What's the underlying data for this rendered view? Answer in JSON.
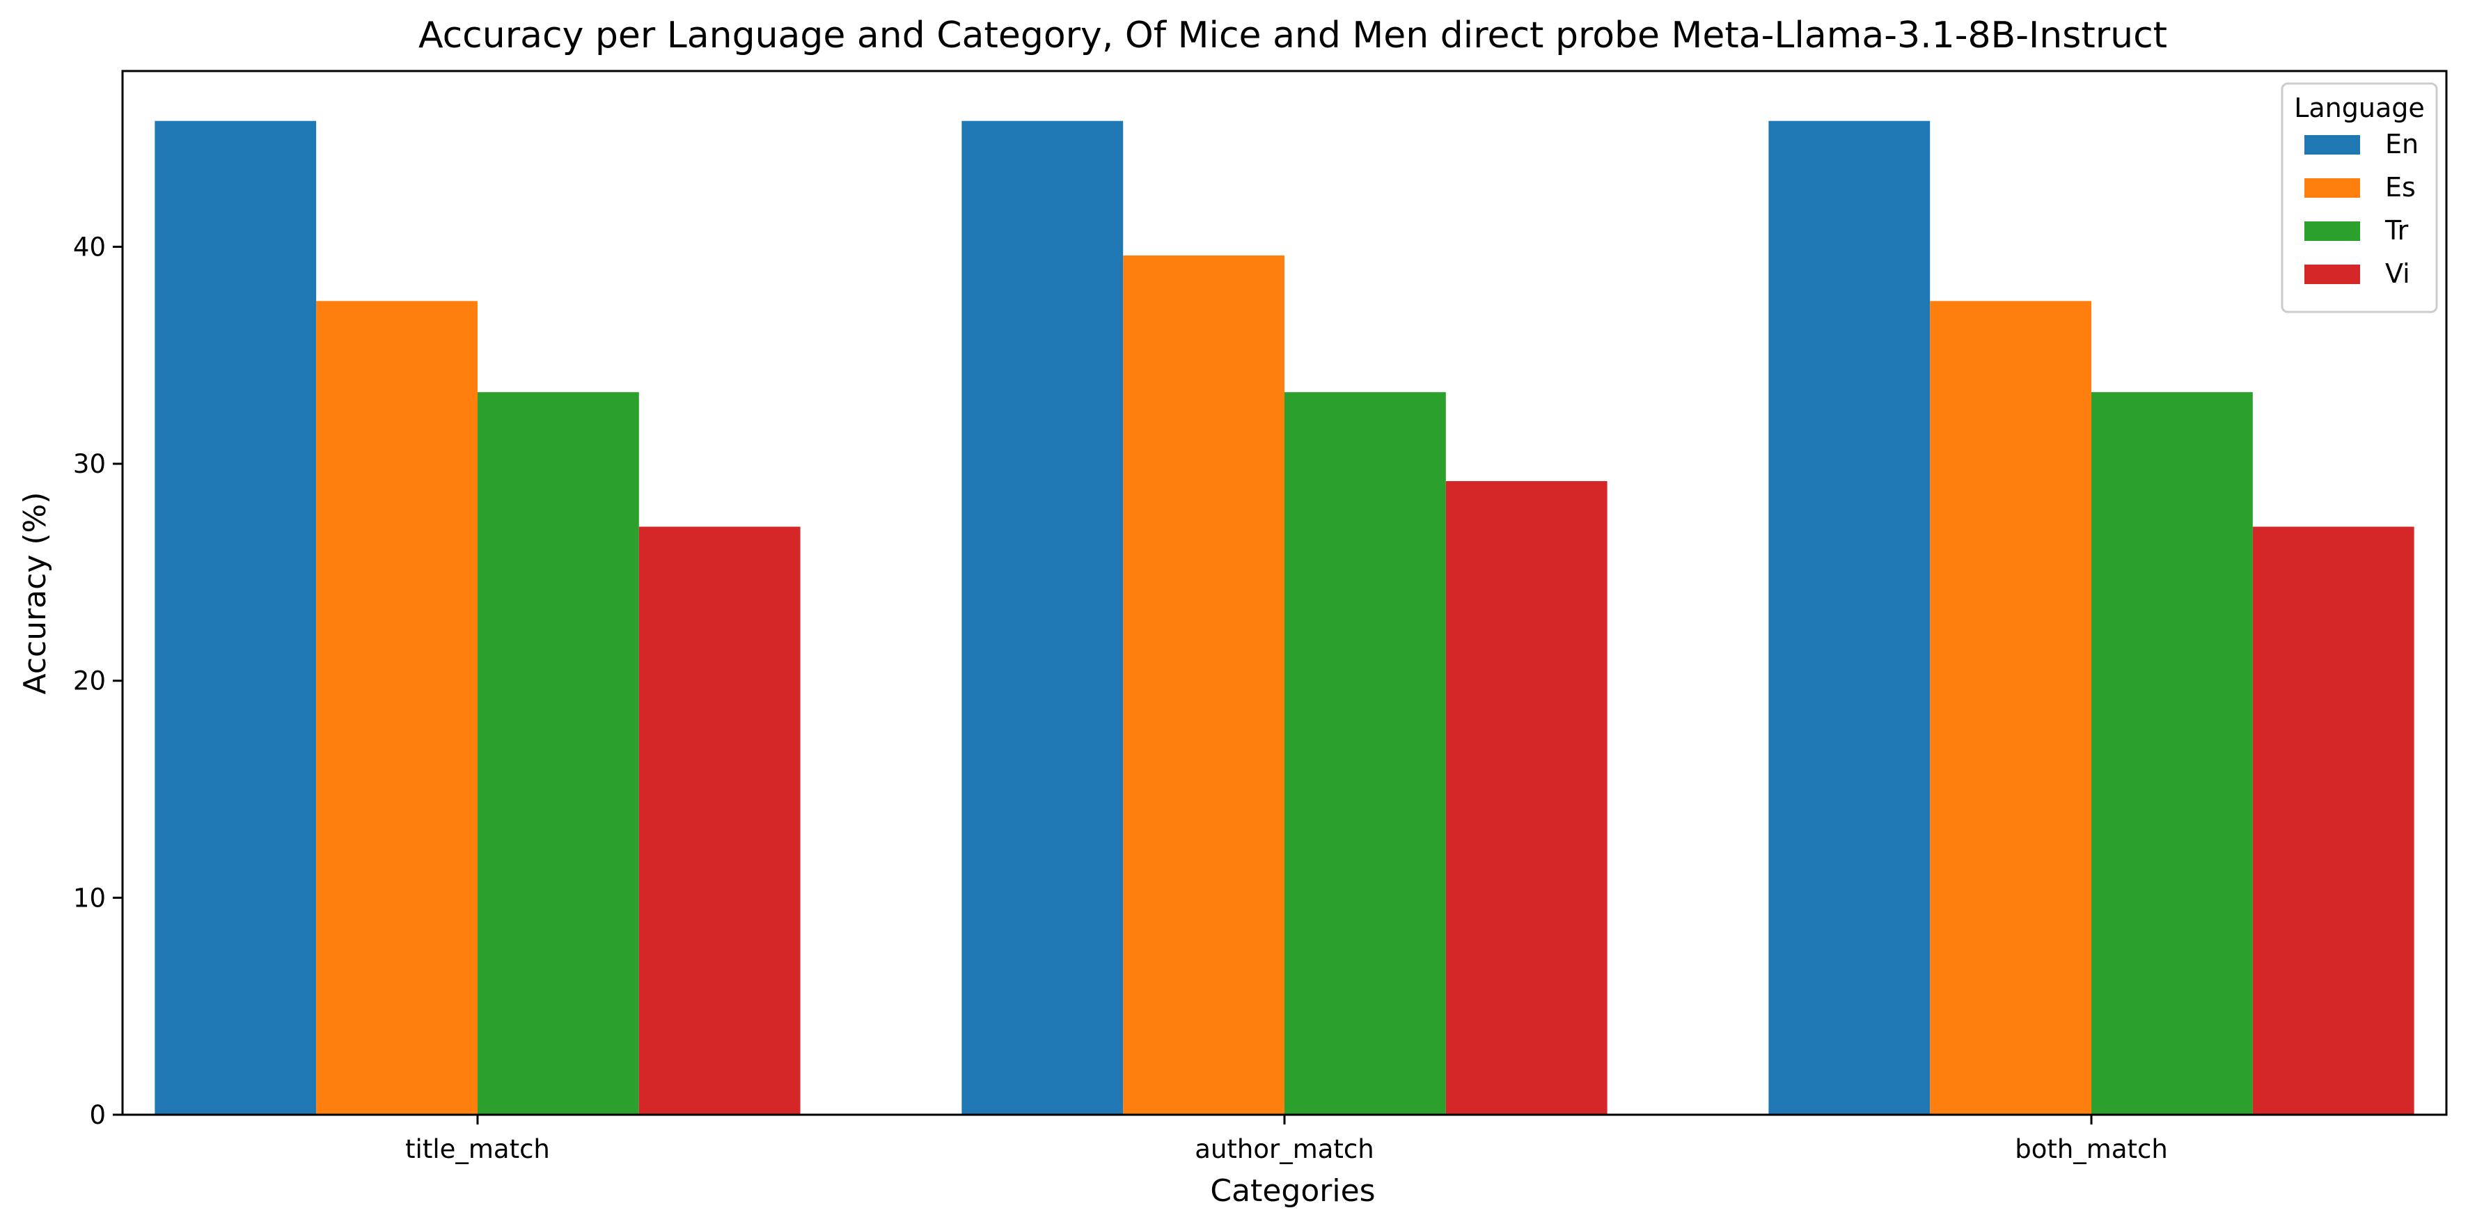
{
  "chart_data": {
    "type": "bar",
    "title": "Accuracy per Language and Category, Of Mice and Men direct probe Meta-Llama-3.1-8B-Instruct",
    "xlabel": "Categories",
    "ylabel": "Accuracy (%)",
    "categories": [
      "title_match",
      "author_match",
      "both_match"
    ],
    "ylim": [
      0,
      48.1
    ],
    "yticks": [
      0,
      10,
      20,
      30,
      40
    ],
    "grid": false,
    "legend": {
      "title": "Language",
      "placement": "top-right"
    },
    "series": [
      {
        "name": "En",
        "color": "#1f77b4",
        "values": [
          45.8,
          45.8,
          45.8
        ]
      },
      {
        "name": "Es",
        "color": "#ff7f0e",
        "values": [
          37.5,
          39.6,
          37.5
        ]
      },
      {
        "name": "Tr",
        "color": "#2ca02c",
        "values": [
          33.3,
          33.3,
          33.3
        ]
      },
      {
        "name": "Vi",
        "color": "#d62728",
        "values": [
          27.1,
          29.2,
          27.1
        ]
      }
    ]
  }
}
